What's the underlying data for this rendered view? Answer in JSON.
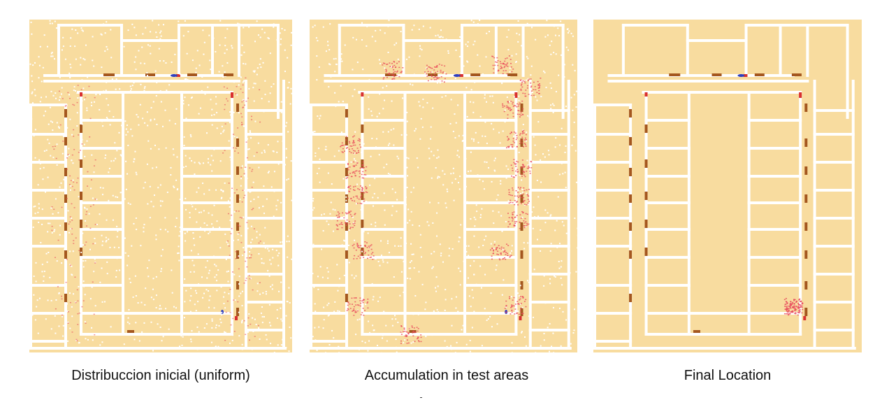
{
  "panels": [
    {
      "caption": "Distribuccion inicial (uniform)",
      "particles": "uniform"
    },
    {
      "caption": "Accumulation in test areas",
      "particles": "clustered"
    },
    {
      "caption": "Final Location",
      "particles": "single-cluster"
    }
  ],
  "colors": {
    "floor": "#f8dc9f",
    "wall": "#ffffff",
    "door": "#a4571f",
    "door_red": "#d83030",
    "particle": "#e8485a",
    "robot": "#2e3fbf"
  }
}
